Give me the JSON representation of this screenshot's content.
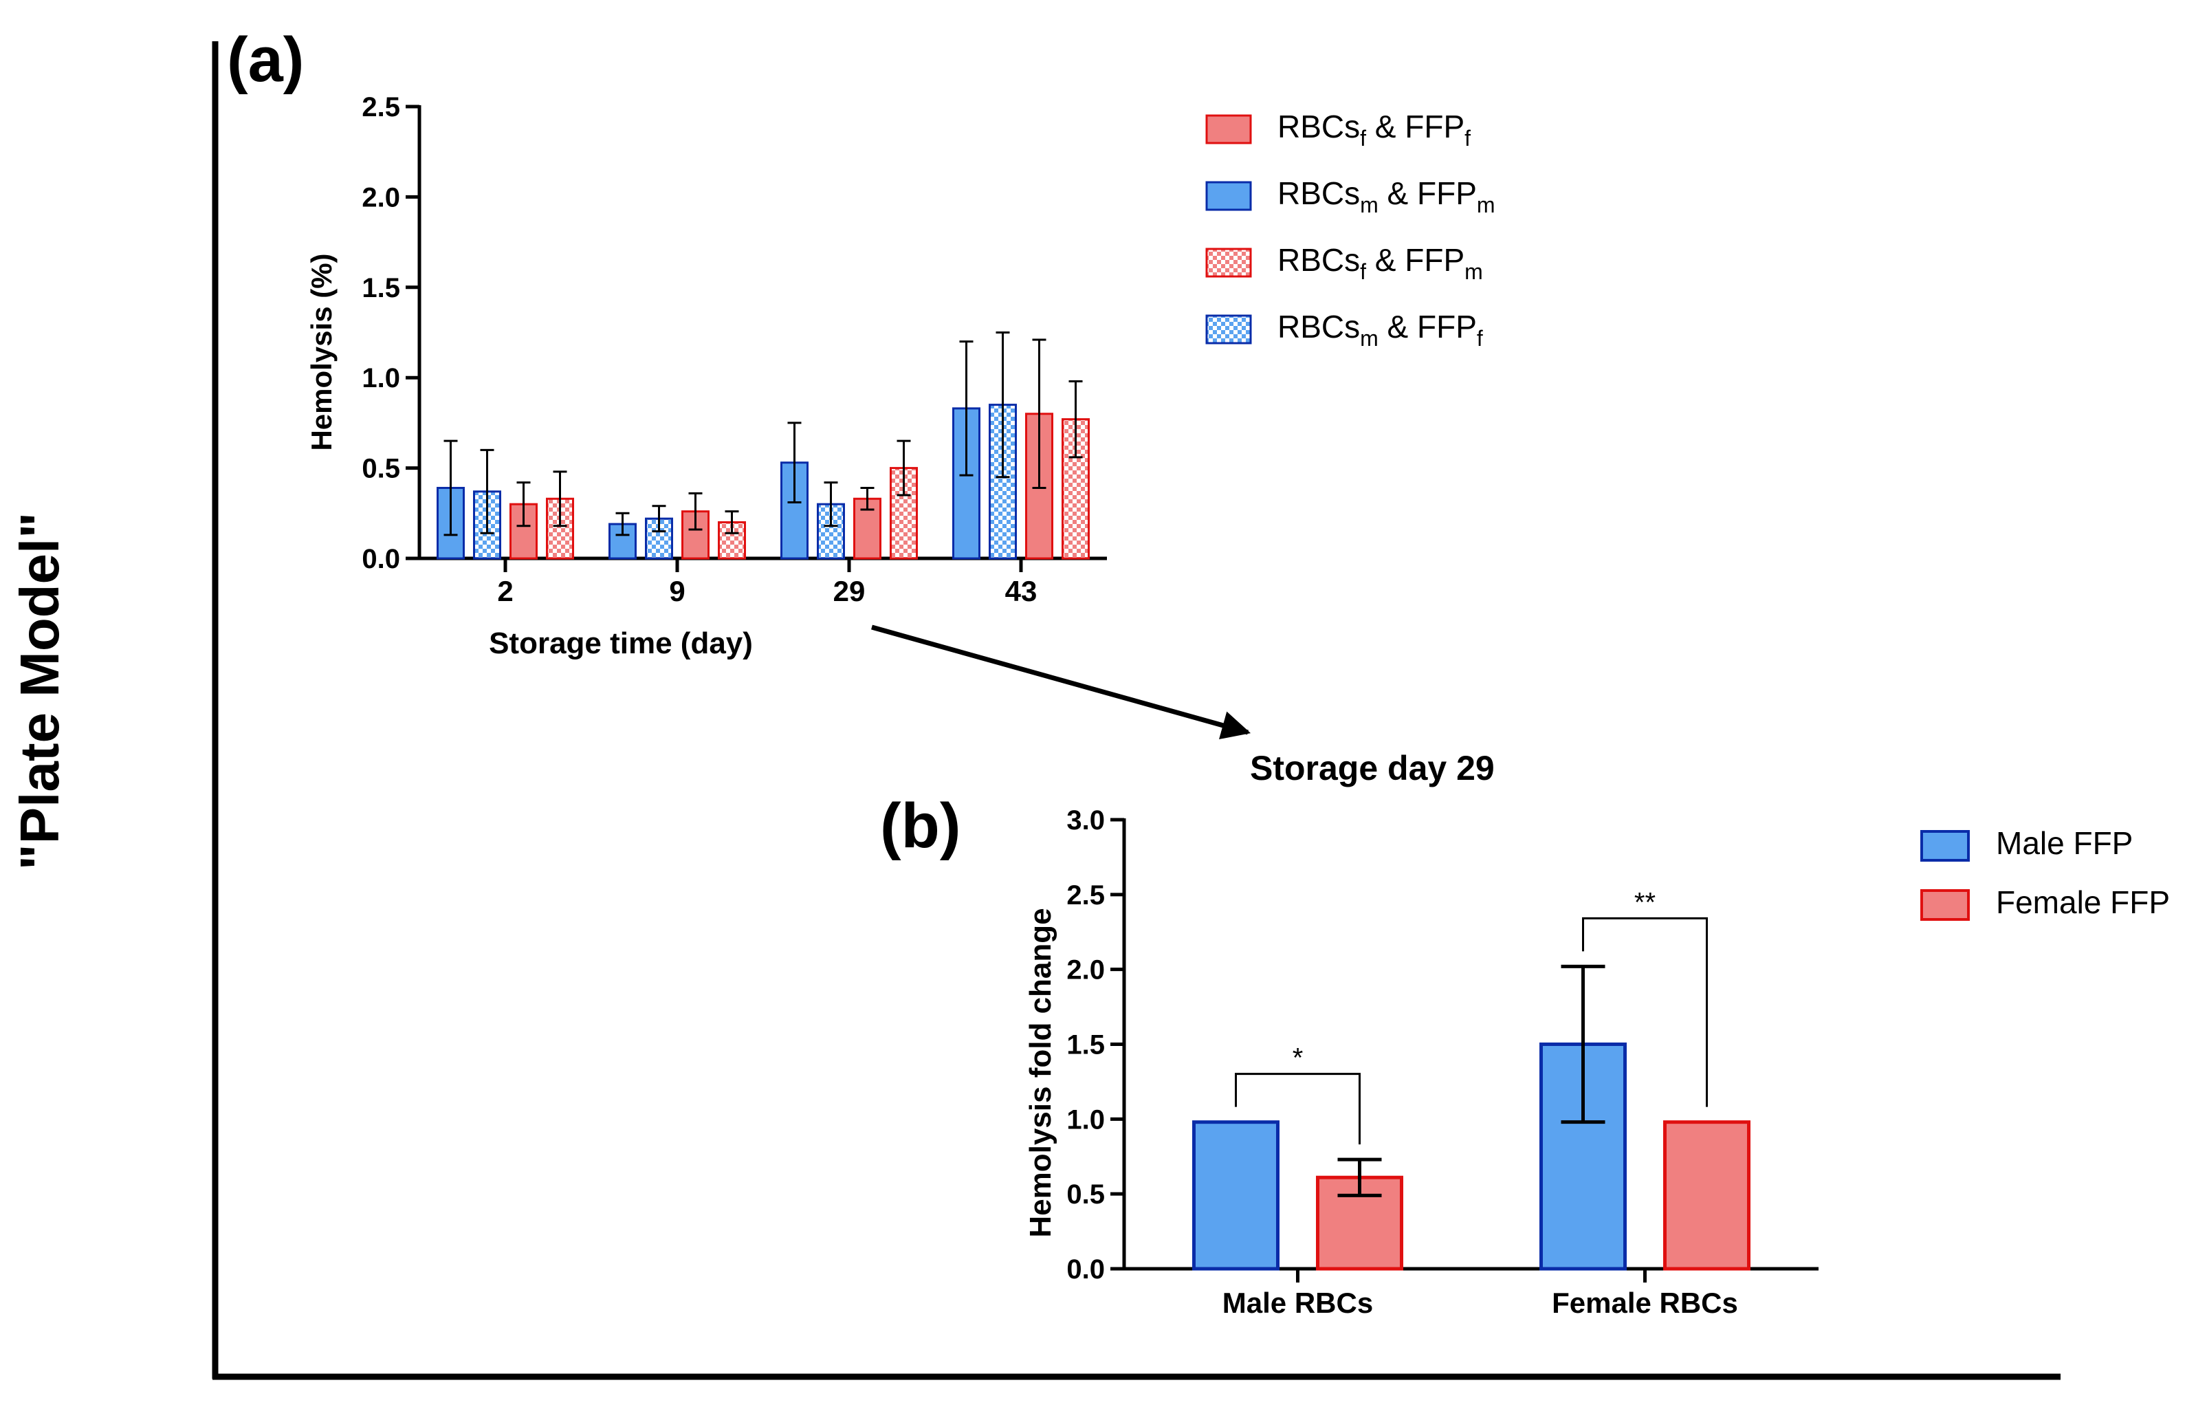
{
  "side_label": "\"Plate Model\"",
  "arrow_label": "Storage day 29",
  "colors": {
    "red_fill": "#f08080",
    "red_stroke": "#e01010",
    "blue_fill": "#5ba3f0",
    "blue_stroke": "#0a2ca8",
    "axis": "#000000"
  },
  "chart_data": [
    {
      "panel": "(a)",
      "type": "bar",
      "title": "",
      "xlabel": "Storage time (day)",
      "ylabel": "Hemolysis (%)",
      "ylim": [
        0,
        2.5
      ],
      "yticks": [
        "0.0",
        "0.5",
        "1.0",
        "1.5",
        "2.0",
        "2.5"
      ],
      "categories": [
        "2",
        "9",
        "29",
        "43"
      ],
      "legend_position": "top-right",
      "legend": [
        {
          "base": "RBCs",
          "sub1": "f",
          "mid": " & FFP",
          "sub2": "f",
          "fill": "solid",
          "color": "red"
        },
        {
          "base": "RBCs",
          "sub1": "m",
          "mid": " & FFP",
          "sub2": "m",
          "fill": "solid",
          "color": "blue"
        },
        {
          "base": "RBCs",
          "sub1": "f",
          "mid": " & FFP",
          "sub2": "m",
          "fill": "checker",
          "color": "red"
        },
        {
          "base": "RBCs",
          "sub1": "m",
          "mid": " & FFP",
          "sub2": "f",
          "fill": "checker",
          "color": "blue"
        }
      ],
      "bars": [
        {
          "x": "2",
          "series": "RBCs_m & FFP_m",
          "y": 0.39,
          "err": 0.26,
          "color": "blue",
          "fill": "solid"
        },
        {
          "x": "2",
          "series": "RBCs_m & FFP_f",
          "y": 0.37,
          "err": 0.23,
          "color": "blue",
          "fill": "checker"
        },
        {
          "x": "2",
          "series": "RBCs_f & FFP_f",
          "y": 0.3,
          "err": 0.12,
          "color": "red",
          "fill": "solid"
        },
        {
          "x": "2",
          "series": "RBCs_f & FFP_m",
          "y": 0.33,
          "err": 0.15,
          "color": "red",
          "fill": "checker"
        },
        {
          "x": "9",
          "series": "RBCs_m & FFP_m",
          "y": 0.19,
          "err": 0.06,
          "color": "blue",
          "fill": "solid"
        },
        {
          "x": "9",
          "series": "RBCs_m & FFP_f",
          "y": 0.22,
          "err": 0.07,
          "color": "blue",
          "fill": "checker"
        },
        {
          "x": "9",
          "series": "RBCs_f & FFP_f",
          "y": 0.26,
          "err": 0.1,
          "color": "red",
          "fill": "solid"
        },
        {
          "x": "9",
          "series": "RBCs_f & FFP_m",
          "y": 0.2,
          "err": 0.06,
          "color": "red",
          "fill": "checker"
        },
        {
          "x": "29",
          "series": "RBCs_m & FFP_m",
          "y": 0.53,
          "err": 0.22,
          "color": "blue",
          "fill": "solid"
        },
        {
          "x": "29",
          "series": "RBCs_m & FFP_f",
          "y": 0.3,
          "err": 0.12,
          "color": "blue",
          "fill": "checker"
        },
        {
          "x": "29",
          "series": "RBCs_f & FFP_f",
          "y": 0.33,
          "err": 0.06,
          "color": "red",
          "fill": "solid"
        },
        {
          "x": "29",
          "series": "RBCs_f & FFP_m",
          "y": 0.5,
          "err": 0.15,
          "color": "red",
          "fill": "checker"
        },
        {
          "x": "43",
          "series": "RBCs_m & FFP_m",
          "y": 0.83,
          "err": 0.37,
          "color": "blue",
          "fill": "solid"
        },
        {
          "x": "43",
          "series": "RBCs_m & FFP_f",
          "y": 0.85,
          "err": 0.4,
          "color": "blue",
          "fill": "checker"
        },
        {
          "x": "43",
          "series": "RBCs_f & FFP_f",
          "y": 0.8,
          "err": 0.41,
          "color": "red",
          "fill": "solid"
        },
        {
          "x": "43",
          "series": "RBCs_f & FFP_m",
          "y": 0.77,
          "err": 0.21,
          "color": "red",
          "fill": "checker"
        }
      ]
    },
    {
      "panel": "(b)",
      "type": "bar",
      "title": "Storage day 29",
      "xlabel": "",
      "ylabel": "Hemolysis fold change",
      "ylim": [
        0,
        3.0
      ],
      "yticks": [
        "0.0",
        "0.5",
        "1.0",
        "1.5",
        "2.0",
        "2.5",
        "3.0"
      ],
      "categories": [
        "Male RBCs",
        "Female RBCs"
      ],
      "legend_position": "top-right",
      "series": [
        {
          "name": "Male FFP",
          "color": "blue",
          "values": [
            0.98,
            1.5
          ],
          "err": [
            0,
            0.52
          ]
        },
        {
          "name": "Female FFP",
          "color": "red",
          "values": [
            0.61,
            0.98
          ],
          "err": [
            0.12,
            0
          ]
        }
      ],
      "significance": [
        "*",
        "**"
      ]
    }
  ]
}
